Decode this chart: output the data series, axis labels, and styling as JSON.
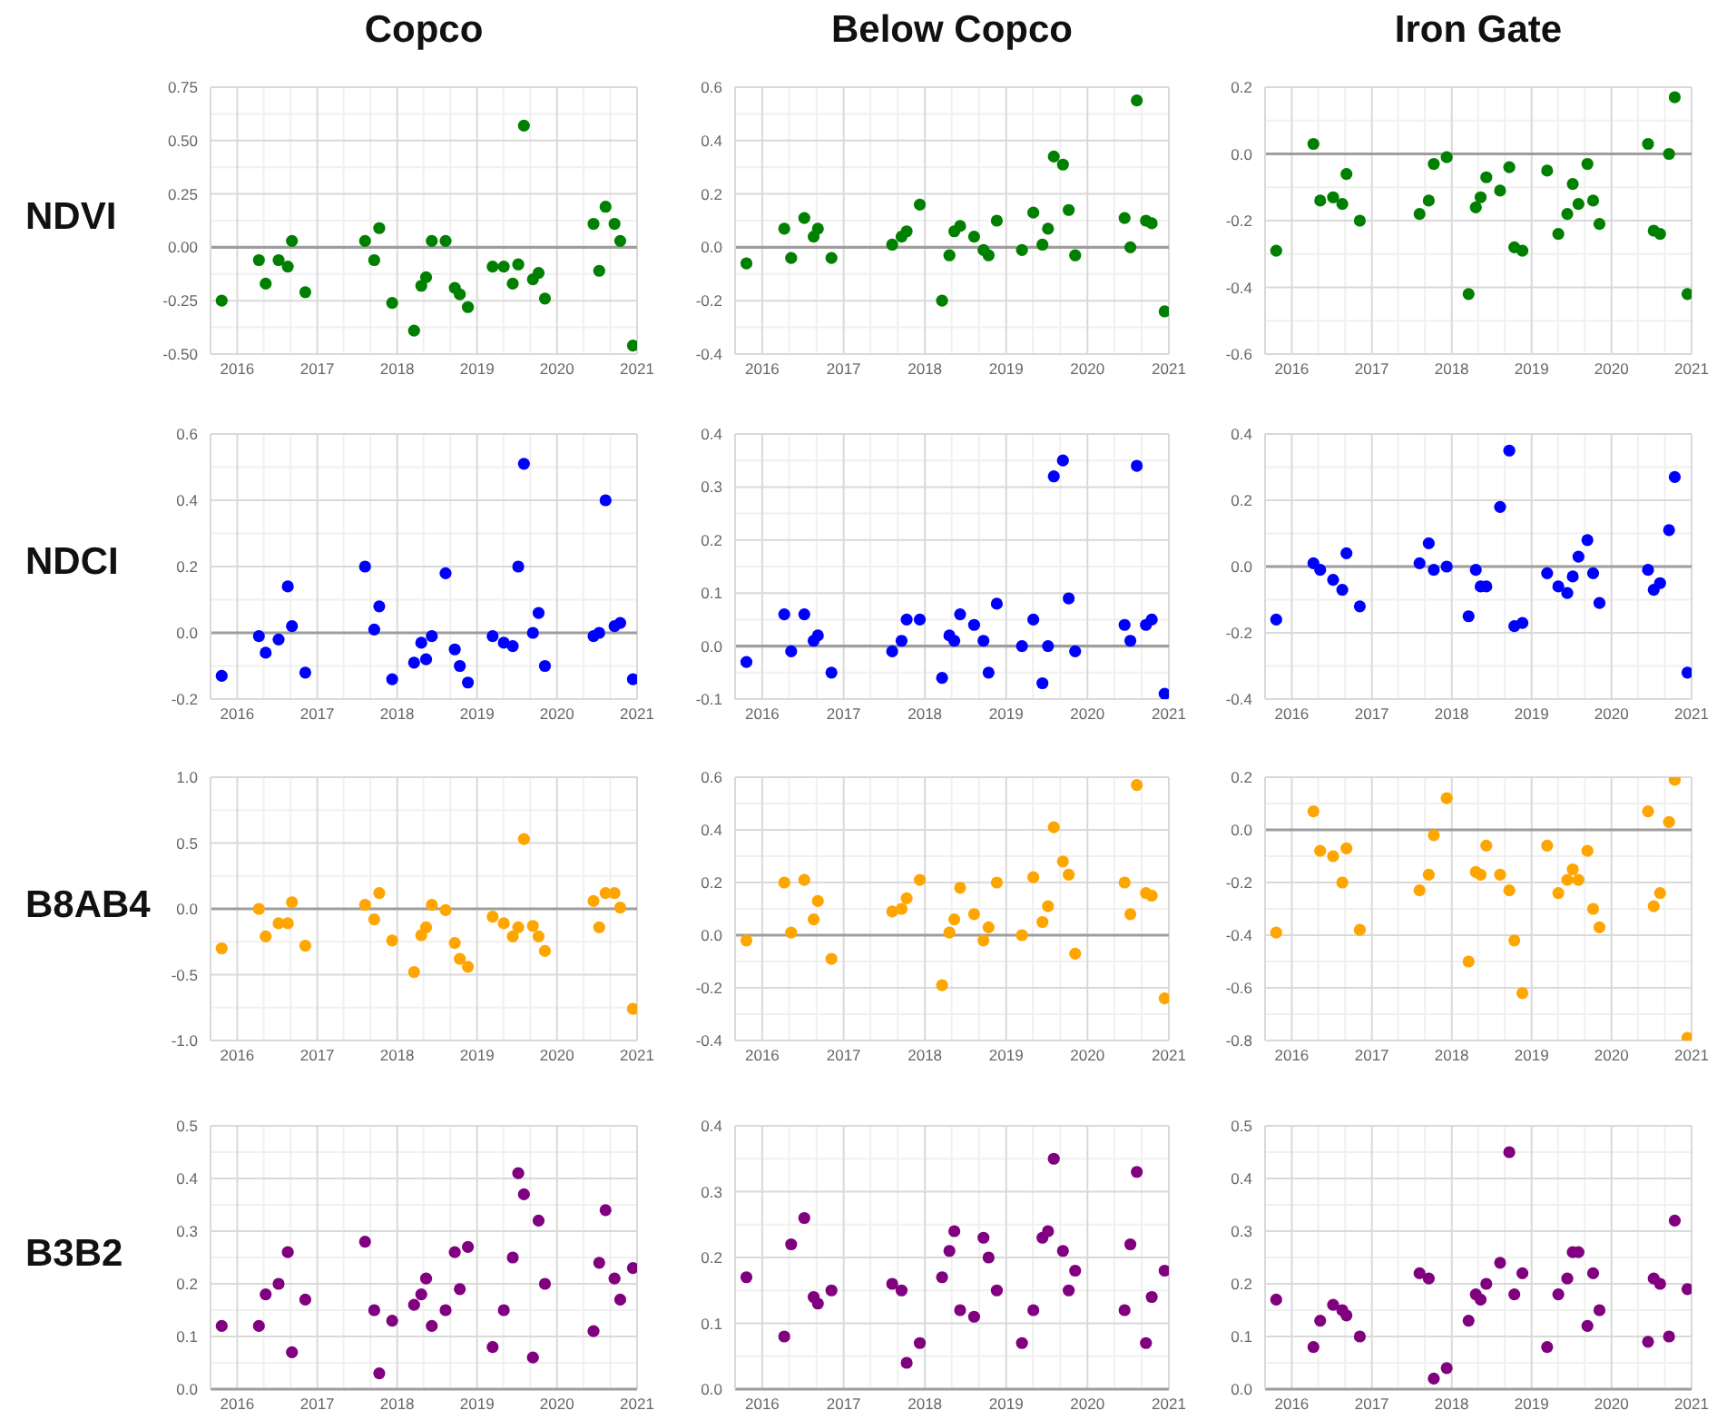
{
  "chart_data": [
    {
      "type": "scatter",
      "title": "Copco",
      "ylabel": "NDVI",
      "x": [
        "2015-10-22",
        "2016-04-09",
        "2016-05-10",
        "2016-07-08",
        "2016-08-19",
        "2016-09-07",
        "2016-11-07",
        "2017-08-07",
        "2017-09-18",
        "2017-10-11",
        "2017-12-09",
        "2018-03-19",
        "2018-04-21",
        "2018-05-13",
        "2018-06-08",
        "2018-08-10",
        "2018-09-21",
        "2018-10-14",
        "2018-11-20",
        "2019-03-13",
        "2019-05-03",
        "2019-06-13",
        "2019-07-08",
        "2019-08-03",
        "2019-09-13",
        "2019-10-09",
        "2019-11-07",
        "2020-06-16",
        "2020-07-12",
        "2020-08-10",
        "2020-09-20",
        "2020-10-16",
        "2020-12-13"
      ],
      "values": [
        -0.25,
        -0.06,
        -0.17,
        -0.06,
        -0.09,
        0.03,
        -0.21,
        0.03,
        -0.06,
        0.09,
        -0.26,
        -0.39,
        -0.18,
        -0.14,
        0.03,
        0.03,
        -0.19,
        -0.22,
        -0.28,
        -0.09,
        -0.09,
        -0.17,
        -0.08,
        0.57,
        -0.15,
        -0.12,
        -0.24,
        0.11,
        -0.11,
        0.19,
        0.11,
        0.03,
        -0.46
      ],
      "color": "#008000",
      "marker": "circle",
      "xlim": [
        "2015-09",
        "2021-01"
      ],
      "xticks": [
        "2016",
        {
          "value": "2016-05",
          "label": null
        },
        {
          "value": "2016-09",
          "label": null
        },
        "2017",
        {
          "value": "2017-05",
          "label": null
        },
        {
          "value": "2017-09",
          "label": null
        },
        "2018",
        {
          "value": "2018-05",
          "label": null
        },
        {
          "value": "2018-09",
          "label": null
        },
        "2019",
        {
          "value": "2019-05",
          "label": null
        },
        {
          "value": "2019-09",
          "label": null
        },
        "2020",
        {
          "value": "2020-05",
          "label": null
        },
        {
          "value": "2020-09",
          "label": null
        },
        "2021"
      ],
      "ylim": [
        -0.5,
        0.75
      ],
      "yticks": [
        {
          "value": -0.5,
          "label": "-0.50"
        },
        {
          "value": -0.375,
          "label": null
        },
        -0.25,
        {
          "value": -0.125,
          "label": null
        },
        {
          "value": 0,
          "label": "0.00"
        },
        {
          "value": 0.125,
          "label": null
        },
        0.25,
        {
          "value": 0.375,
          "label": null
        },
        {
          "value": 0.5,
          "label": "0.50"
        },
        {
          "value": 0.625,
          "label": null
        },
        0.75
      ],
      "grid": true,
      "ref_lines": [
        {
          "axis": "y",
          "value": 0,
          "color": "#9e9e9e"
        }
      ]
    },
    {
      "type": "scatter",
      "title": "Below Copco",
      "x": [
        "2015-10-22",
        "2016-04-09",
        "2016-05-10",
        "2016-07-08",
        "2016-08-19",
        "2016-09-07",
        "2016-11-07",
        "2017-08-07",
        "2017-09-18",
        "2017-10-11",
        "2017-12-09",
        "2018-03-19",
        "2018-04-21",
        "2018-05-13",
        "2018-06-08",
        "2018-08-10",
        "2018-09-21",
        "2018-10-14",
        "2018-11-20",
        "2019-03-13",
        "2019-05-03",
        "2019-06-13",
        "2019-07-08",
        "2019-08-03",
        "2019-09-13",
        "2019-10-09",
        "2019-11-07",
        "2020-06-16",
        "2020-07-12",
        "2020-08-10",
        "2020-09-20",
        "2020-10-16",
        "2020-12-13"
      ],
      "values": [
        -0.06,
        0.07,
        -0.04,
        0.11,
        0.04,
        0.07,
        -0.04,
        0.01,
        0.04,
        0.06,
        0.16,
        -0.2,
        -0.03,
        0.06,
        0.08,
        0.04,
        -0.01,
        -0.03,
        0.1,
        -0.01,
        0.13,
        0.01,
        0.07,
        0.34,
        0.31,
        0.14,
        -0.03,
        0.11,
        0.0,
        0.55,
        0.1,
        0.09,
        -0.24
      ],
      "color": "#008000",
      "marker": "circle",
      "xlim": [
        "2015-09",
        "2021-01"
      ],
      "xticks": [
        "2016",
        {
          "value": "2016-05",
          "label": null
        },
        {
          "value": "2016-09",
          "label": null
        },
        "2017",
        {
          "value": "2017-05",
          "label": null
        },
        {
          "value": "2017-09",
          "label": null
        },
        "2018",
        {
          "value": "2018-05",
          "label": null
        },
        {
          "value": "2018-09",
          "label": null
        },
        "2019",
        {
          "value": "2019-05",
          "label": null
        },
        {
          "value": "2019-09",
          "label": null
        },
        "2020",
        {
          "value": "2020-05",
          "label": null
        },
        {
          "value": "2020-09",
          "label": null
        },
        "2021"
      ],
      "ylim": [
        -0.4,
        0.6
      ],
      "yticks": [
        -0.4,
        {
          "value": -0.3,
          "label": null
        },
        -0.2,
        {
          "value": -0.1,
          "label": null
        },
        {
          "value": 0,
          "label": "0.0"
        },
        {
          "value": 0.1,
          "label": null
        },
        0.2,
        {
          "value": 0.3,
          "label": null
        },
        0.4,
        {
          "value": 0.5,
          "label": null
        },
        0.6
      ],
      "grid": true,
      "ref_lines": [
        {
          "axis": "y",
          "value": 0,
          "color": "#9e9e9e"
        }
      ]
    },
    {
      "type": "scatter",
      "title": "Iron Gate",
      "x": [
        "2015-10-22",
        "2016-04-09",
        "2016-05-10",
        "2016-07-08",
        "2016-08-19",
        "2016-09-07",
        "2016-11-07",
        "2017-08-07",
        "2017-09-18",
        "2017-10-11",
        "2017-12-09",
        "2018-03-19",
        "2018-04-21",
        "2018-05-13",
        "2018-06-08",
        "2018-08-10",
        "2018-09-21",
        "2018-10-14",
        "2018-11-20",
        "2019-03-13",
        "2019-05-03",
        "2019-06-13",
        "2019-07-08",
        "2019-08-03",
        "2019-09-13",
        "2019-10-09",
        "2019-11-07",
        "2020-06-16",
        "2020-07-12",
        "2020-08-10",
        "2020-09-20",
        "2020-10-16",
        "2020-12-13"
      ],
      "values": [
        -0.29,
        0.03,
        -0.14,
        -0.13,
        -0.15,
        -0.06,
        -0.2,
        -0.18,
        -0.14,
        -0.03,
        -0.01,
        -0.42,
        -0.16,
        -0.13,
        -0.07,
        -0.11,
        -0.04,
        -0.28,
        -0.29,
        -0.05,
        -0.24,
        -0.18,
        -0.09,
        -0.15,
        -0.03,
        -0.14,
        -0.21,
        0.03,
        -0.23,
        -0.24,
        0.0,
        0.17,
        -0.42
      ],
      "color": "#008000",
      "marker": "circle",
      "xlim": [
        "2015-09",
        "2021-01"
      ],
      "xticks": [
        "2016",
        {
          "value": "2016-05",
          "label": null
        },
        {
          "value": "2016-09",
          "label": null
        },
        "2017",
        {
          "value": "2017-05",
          "label": null
        },
        {
          "value": "2017-09",
          "label": null
        },
        "2018",
        {
          "value": "2018-05",
          "label": null
        },
        {
          "value": "2018-09",
          "label": null
        },
        "2019",
        {
          "value": "2019-05",
          "label": null
        },
        {
          "value": "2019-09",
          "label": null
        },
        "2020",
        {
          "value": "2020-05",
          "label": null
        },
        {
          "value": "2020-09",
          "label": null
        },
        "2021"
      ],
      "ylim": [
        -0.6,
        0.2
      ],
      "yticks": [
        -0.6,
        {
          "value": -0.5,
          "label": null
        },
        -0.4,
        {
          "value": -0.3,
          "label": null
        },
        -0.2,
        {
          "value": -0.1,
          "label": null
        },
        {
          "value": 0,
          "label": "0.0"
        },
        {
          "value": 0.1,
          "label": null
        },
        0.2
      ],
      "grid": true,
      "ref_lines": [
        {
          "axis": "y",
          "value": 0,
          "color": "#9e9e9e"
        }
      ]
    },
    {
      "type": "scatter",
      "ylabel": "NDCI",
      "x": [
        "2015-10-22",
        "2016-04-09",
        "2016-05-10",
        "2016-07-08",
        "2016-08-19",
        "2016-09-07",
        "2016-11-07",
        "2017-08-07",
        "2017-09-18",
        "2017-10-11",
        "2017-12-09",
        "2018-03-19",
        "2018-04-21",
        "2018-05-13",
        "2018-06-08",
        "2018-08-10",
        "2018-09-21",
        "2018-10-14",
        "2018-11-20",
        "2019-03-13",
        "2019-05-03",
        "2019-06-13",
        "2019-07-08",
        "2019-08-03",
        "2019-09-13",
        "2019-10-09",
        "2019-11-07",
        "2020-06-16",
        "2020-07-12",
        "2020-08-10",
        "2020-09-20",
        "2020-10-16",
        "2020-12-13"
      ],
      "values": [
        -0.13,
        -0.01,
        -0.06,
        -0.02,
        0.14,
        0.02,
        -0.12,
        0.2,
        0.01,
        0.08,
        -0.14,
        -0.09,
        -0.03,
        -0.08,
        -0.01,
        0.18,
        -0.05,
        -0.1,
        -0.15,
        -0.01,
        -0.03,
        -0.04,
        0.2,
        0.51,
        0.0,
        0.06,
        -0.1,
        -0.01,
        0.0,
        0.4,
        0.02,
        0.03,
        -0.14
      ],
      "color": "#0000ff",
      "marker": "circle",
      "xlim": [
        "2015-09",
        "2021-01"
      ],
      "xticks": [
        "2016",
        {
          "value": "2016-05",
          "label": null
        },
        {
          "value": "2016-09",
          "label": null
        },
        "2017",
        {
          "value": "2017-05",
          "label": null
        },
        {
          "value": "2017-09",
          "label": null
        },
        "2018",
        {
          "value": "2018-05",
          "label": null
        },
        {
          "value": "2018-09",
          "label": null
        },
        "2019",
        {
          "value": "2019-05",
          "label": null
        },
        {
          "value": "2019-09",
          "label": null
        },
        "2020",
        {
          "value": "2020-05",
          "label": null
        },
        {
          "value": "2020-09",
          "label": null
        },
        "2021"
      ],
      "ylim": [
        -0.2,
        0.6
      ],
      "yticks": [
        -0.2,
        {
          "value": -0.1,
          "label": null
        },
        {
          "value": 0,
          "label": "0.0"
        },
        {
          "value": 0.1,
          "label": null
        },
        0.2,
        {
          "value": 0.3,
          "label": null
        },
        0.4,
        {
          "value": 0.5,
          "label": null
        },
        0.6
      ],
      "grid": true,
      "ref_lines": [
        {
          "axis": "y",
          "value": 0,
          "color": "#9e9e9e"
        }
      ]
    },
    {
      "type": "scatter",
      "x": [
        "2015-10-22",
        "2016-04-09",
        "2016-05-10",
        "2016-07-08",
        "2016-08-19",
        "2016-09-07",
        "2016-11-07",
        "2017-08-07",
        "2017-09-18",
        "2017-10-11",
        "2017-12-09",
        "2018-03-19",
        "2018-04-21",
        "2018-05-13",
        "2018-06-08",
        "2018-08-10",
        "2018-09-21",
        "2018-10-14",
        "2018-11-20",
        "2019-03-13",
        "2019-05-03",
        "2019-06-13",
        "2019-07-08",
        "2019-08-03",
        "2019-09-13",
        "2019-10-09",
        "2019-11-07",
        "2020-06-16",
        "2020-07-12",
        "2020-08-10",
        "2020-09-20",
        "2020-10-16",
        "2020-12-13"
      ],
      "values": [
        -0.03,
        0.06,
        -0.01,
        0.06,
        0.01,
        0.02,
        -0.05,
        -0.01,
        0.01,
        0.05,
        0.05,
        -0.06,
        0.02,
        0.01,
        0.06,
        0.04,
        0.01,
        -0.05,
        0.08,
        0.0,
        0.05,
        -0.07,
        0.0,
        0.32,
        0.35,
        0.09,
        -0.01,
        0.04,
        0.01,
        0.34,
        0.04,
        0.05,
        -0.09
      ],
      "color": "#0000ff",
      "marker": "circle",
      "xlim": [
        "2015-09",
        "2021-01"
      ],
      "xticks": [
        "2016",
        {
          "value": "2016-05",
          "label": null
        },
        {
          "value": "2016-09",
          "label": null
        },
        "2017",
        {
          "value": "2017-05",
          "label": null
        },
        {
          "value": "2017-09",
          "label": null
        },
        "2018",
        {
          "value": "2018-05",
          "label": null
        },
        {
          "value": "2018-09",
          "label": null
        },
        "2019",
        {
          "value": "2019-05",
          "label": null
        },
        {
          "value": "2019-09",
          "label": null
        },
        "2020",
        {
          "value": "2020-05",
          "label": null
        },
        {
          "value": "2020-09",
          "label": null
        },
        "2021"
      ],
      "ylim": [
        -0.1,
        0.4
      ],
      "yticks": [
        -0.1,
        {
          "value": -0.05,
          "label": null
        },
        {
          "value": 0,
          "label": "0.0"
        },
        {
          "value": 0.05,
          "label": null
        },
        0.1,
        {
          "value": 0.15,
          "label": null
        },
        0.2,
        {
          "value": 0.25,
          "label": null
        },
        0.3,
        {
          "value": 0.35,
          "label": null
        },
        0.4
      ],
      "grid": true,
      "ref_lines": [
        {
          "axis": "y",
          "value": 0,
          "color": "#9e9e9e"
        }
      ]
    },
    {
      "type": "scatter",
      "x": [
        "2015-10-22",
        "2016-04-09",
        "2016-05-10",
        "2016-07-08",
        "2016-08-19",
        "2016-09-07",
        "2016-11-07",
        "2017-08-07",
        "2017-09-18",
        "2017-10-11",
        "2017-12-09",
        "2018-03-19",
        "2018-04-21",
        "2018-05-13",
        "2018-06-08",
        "2018-08-10",
        "2018-09-21",
        "2018-10-14",
        "2018-11-20",
        "2019-03-13",
        "2019-05-03",
        "2019-06-13",
        "2019-07-08",
        "2019-08-03",
        "2019-09-13",
        "2019-10-09",
        "2019-11-07",
        "2020-06-16",
        "2020-07-12",
        "2020-08-10",
        "2020-09-20",
        "2020-10-16",
        "2020-12-13"
      ],
      "values": [
        -0.16,
        0.01,
        -0.01,
        -0.04,
        -0.07,
        0.04,
        -0.12,
        0.01,
        0.07,
        -0.01,
        0.0,
        -0.15,
        -0.01,
        -0.06,
        -0.06,
        0.18,
        0.35,
        -0.18,
        -0.17,
        -0.02,
        -0.06,
        -0.08,
        -0.03,
        0.03,
        0.08,
        -0.02,
        -0.11,
        -0.01,
        -0.07,
        -0.05,
        0.11,
        0.27,
        -0.32
      ],
      "color": "#0000ff",
      "marker": "circle",
      "xlim": [
        "2015-09",
        "2021-01"
      ],
      "xticks": [
        "2016",
        {
          "value": "2016-05",
          "label": null
        },
        {
          "value": "2016-09",
          "label": null
        },
        "2017",
        {
          "value": "2017-05",
          "label": null
        },
        {
          "value": "2017-09",
          "label": null
        },
        "2018",
        {
          "value": "2018-05",
          "label": null
        },
        {
          "value": "2018-09",
          "label": null
        },
        "2019",
        {
          "value": "2019-05",
          "label": null
        },
        {
          "value": "2019-09",
          "label": null
        },
        "2020",
        {
          "value": "2020-05",
          "label": null
        },
        {
          "value": "2020-09",
          "label": null
        },
        "2021"
      ],
      "ylim": [
        -0.4,
        0.4
      ],
      "yticks": [
        -0.4,
        {
          "value": -0.3,
          "label": null
        },
        -0.2,
        {
          "value": -0.1,
          "label": null
        },
        {
          "value": 0,
          "label": "0.0"
        },
        {
          "value": 0.1,
          "label": null
        },
        0.2,
        {
          "value": 0.3,
          "label": null
        },
        0.4
      ],
      "grid": true,
      "ref_lines": [
        {
          "axis": "y",
          "value": 0,
          "color": "#9e9e9e"
        }
      ]
    },
    {
      "type": "scatter",
      "ylabel": "B8AB4",
      "x": [
        "2015-10-22",
        "2016-04-09",
        "2016-05-10",
        "2016-07-08",
        "2016-08-19",
        "2016-09-07",
        "2016-11-07",
        "2017-08-07",
        "2017-09-18",
        "2017-10-11",
        "2017-12-09",
        "2018-03-19",
        "2018-04-21",
        "2018-05-13",
        "2018-06-08",
        "2018-08-10",
        "2018-09-21",
        "2018-10-14",
        "2018-11-20",
        "2019-03-13",
        "2019-05-03",
        "2019-06-13",
        "2019-07-08",
        "2019-08-03",
        "2019-09-13",
        "2019-10-09",
        "2019-11-07",
        "2020-06-16",
        "2020-07-12",
        "2020-08-10",
        "2020-09-20",
        "2020-10-16",
        "2020-12-13"
      ],
      "values": [
        -0.3,
        0.0,
        -0.21,
        -0.11,
        -0.11,
        0.05,
        -0.28,
        0.03,
        -0.08,
        0.12,
        -0.24,
        -0.48,
        -0.2,
        -0.14,
        0.03,
        -0.01,
        -0.26,
        -0.38,
        -0.44,
        -0.06,
        -0.11,
        -0.21,
        -0.14,
        0.53,
        -0.13,
        -0.21,
        -0.32,
        0.06,
        -0.14,
        0.12,
        0.12,
        0.01,
        -0.76
      ],
      "color": "#ffa500",
      "marker": "circle",
      "xlim": [
        "2015-09",
        "2021-01"
      ],
      "xticks": [
        "2016",
        {
          "value": "2016-05",
          "label": null
        },
        {
          "value": "2016-09",
          "label": null
        },
        "2017",
        {
          "value": "2017-05",
          "label": null
        },
        {
          "value": "2017-09",
          "label": null
        },
        "2018",
        {
          "value": "2018-05",
          "label": null
        },
        {
          "value": "2018-09",
          "label": null
        },
        "2019",
        {
          "value": "2019-05",
          "label": null
        },
        {
          "value": "2019-09",
          "label": null
        },
        "2020",
        {
          "value": "2020-05",
          "label": null
        },
        {
          "value": "2020-09",
          "label": null
        },
        "2021"
      ],
      "ylim": [
        -1,
        1
      ],
      "yticks": [
        {
          "value": -1,
          "label": "-1.0"
        },
        {
          "value": -0.75,
          "label": null
        },
        -0.5,
        {
          "value": -0.25,
          "label": null
        },
        {
          "value": 0,
          "label": "0.0"
        },
        {
          "value": 0.25,
          "label": null
        },
        0.5,
        {
          "value": 0.75,
          "label": null
        },
        {
          "value": 1,
          "label": "1.0"
        }
      ],
      "grid": true,
      "ref_lines": [
        {
          "axis": "y",
          "value": 0,
          "color": "#9e9e9e"
        }
      ]
    },
    {
      "type": "scatter",
      "x": [
        "2015-10-22",
        "2016-04-09",
        "2016-05-10",
        "2016-07-08",
        "2016-08-19",
        "2016-09-07",
        "2016-11-07",
        "2017-08-07",
        "2017-09-18",
        "2017-10-11",
        "2017-12-09",
        "2018-03-19",
        "2018-04-21",
        "2018-05-13",
        "2018-06-08",
        "2018-08-10",
        "2018-09-21",
        "2018-10-14",
        "2018-11-20",
        "2019-03-13",
        "2019-05-03",
        "2019-06-13",
        "2019-07-08",
        "2019-08-03",
        "2019-09-13",
        "2019-10-09",
        "2019-11-07",
        "2020-06-16",
        "2020-07-12",
        "2020-08-10",
        "2020-09-20",
        "2020-10-16",
        "2020-12-13"
      ],
      "values": [
        -0.02,
        0.2,
        0.01,
        0.21,
        0.06,
        0.13,
        -0.09,
        0.09,
        0.1,
        0.14,
        0.21,
        -0.19,
        0.01,
        0.06,
        0.18,
        0.08,
        -0.02,
        0.03,
        0.2,
        0.0,
        0.22,
        0.05,
        0.11,
        0.41,
        0.28,
        0.23,
        -0.07,
        0.2,
        0.08,
        0.57,
        0.16,
        0.15,
        -0.24
      ],
      "color": "#ffa500",
      "marker": "circle",
      "xlim": [
        "2015-09",
        "2021-01"
      ],
      "xticks": [
        "2016",
        {
          "value": "2016-05",
          "label": null
        },
        {
          "value": "2016-09",
          "label": null
        },
        "2017",
        {
          "value": "2017-05",
          "label": null
        },
        {
          "value": "2017-09",
          "label": null
        },
        "2018",
        {
          "value": "2018-05",
          "label": null
        },
        {
          "value": "2018-09",
          "label": null
        },
        "2019",
        {
          "value": "2019-05",
          "label": null
        },
        {
          "value": "2019-09",
          "label": null
        },
        "2020",
        {
          "value": "2020-05",
          "label": null
        },
        {
          "value": "2020-09",
          "label": null
        },
        "2021"
      ],
      "ylim": [
        -0.4,
        0.6
      ],
      "yticks": [
        -0.4,
        {
          "value": -0.3,
          "label": null
        },
        -0.2,
        {
          "value": -0.1,
          "label": null
        },
        {
          "value": 0,
          "label": "0.0"
        },
        {
          "value": 0.1,
          "label": null
        },
        0.2,
        {
          "value": 0.3,
          "label": null
        },
        0.4,
        {
          "value": 0.5,
          "label": null
        },
        0.6
      ],
      "grid": true,
      "ref_lines": [
        {
          "axis": "y",
          "value": 0,
          "color": "#9e9e9e"
        }
      ]
    },
    {
      "type": "scatter",
      "x": [
        "2015-10-22",
        "2016-04-09",
        "2016-05-10",
        "2016-07-08",
        "2016-08-19",
        "2016-09-07",
        "2016-11-07",
        "2017-08-07",
        "2017-09-18",
        "2017-10-11",
        "2017-12-09",
        "2018-03-19",
        "2018-04-21",
        "2018-05-13",
        "2018-06-08",
        "2018-08-10",
        "2018-09-21",
        "2018-10-14",
        "2018-11-20",
        "2019-03-13",
        "2019-05-03",
        "2019-06-13",
        "2019-07-08",
        "2019-08-03",
        "2019-09-13",
        "2019-10-09",
        "2019-11-07",
        "2020-06-16",
        "2020-07-12",
        "2020-08-10",
        "2020-09-20",
        "2020-10-16",
        "2020-12-13"
      ],
      "values": [
        -0.39,
        0.07,
        -0.08,
        -0.1,
        -0.2,
        -0.07,
        -0.38,
        -0.23,
        -0.17,
        -0.02,
        0.12,
        -0.5,
        -0.16,
        -0.17,
        -0.06,
        -0.17,
        -0.23,
        -0.42,
        -0.62,
        -0.06,
        -0.24,
        -0.19,
        -0.15,
        -0.19,
        -0.08,
        -0.3,
        -0.37,
        0.07,
        -0.29,
        -0.24,
        0.03,
        0.19,
        -0.79
      ],
      "color": "#ffa500",
      "marker": "circle",
      "xlim": [
        "2015-09",
        "2021-01"
      ],
      "xticks": [
        "2016",
        {
          "value": "2016-05",
          "label": null
        },
        {
          "value": "2016-09",
          "label": null
        },
        "2017",
        {
          "value": "2017-05",
          "label": null
        },
        {
          "value": "2017-09",
          "label": null
        },
        "2018",
        {
          "value": "2018-05",
          "label": null
        },
        {
          "value": "2018-09",
          "label": null
        },
        "2019",
        {
          "value": "2019-05",
          "label": null
        },
        {
          "value": "2019-09",
          "label": null
        },
        "2020",
        {
          "value": "2020-05",
          "label": null
        },
        {
          "value": "2020-09",
          "label": null
        },
        "2021"
      ],
      "ylim": [
        -0.8,
        0.2
      ],
      "yticks": [
        -0.8,
        {
          "value": -0.7,
          "label": null
        },
        -0.6,
        {
          "value": -0.5,
          "label": null
        },
        -0.4,
        {
          "value": -0.3,
          "label": null
        },
        -0.2,
        {
          "value": -0.1,
          "label": null
        },
        {
          "value": 0,
          "label": "0.0"
        },
        {
          "value": 0.1,
          "label": null
        },
        0.2
      ],
      "grid": true,
      "ref_lines": [
        {
          "axis": "y",
          "value": 0,
          "color": "#9e9e9e"
        }
      ]
    },
    {
      "type": "scatter",
      "ylabel": "B3B2",
      "x": [
        "2015-10-22",
        "2016-04-09",
        "2016-05-10",
        "2016-07-08",
        "2016-08-19",
        "2016-09-07",
        "2016-11-07",
        "2017-08-07",
        "2017-09-18",
        "2017-10-11",
        "2017-12-09",
        "2018-03-19",
        "2018-04-21",
        "2018-05-13",
        "2018-06-08",
        "2018-08-10",
        "2018-09-21",
        "2018-10-14",
        "2018-11-20",
        "2019-03-13",
        "2019-05-03",
        "2019-06-13",
        "2019-07-08",
        "2019-08-03",
        "2019-09-13",
        "2019-10-09",
        "2019-11-07",
        "2020-06-16",
        "2020-07-12",
        "2020-08-10",
        "2020-09-20",
        "2020-10-16",
        "2020-12-13"
      ],
      "values": [
        0.12,
        0.12,
        0.18,
        0.2,
        0.26,
        0.07,
        0.17,
        0.28,
        0.15,
        0.03,
        0.13,
        0.16,
        0.18,
        0.21,
        0.12,
        0.15,
        0.26,
        0.19,
        0.27,
        0.08,
        0.15,
        0.25,
        0.41,
        0.37,
        0.06,
        0.32,
        0.2,
        0.11,
        0.24,
        0.34,
        0.21,
        0.17,
        0.23
      ],
      "color": "#800080",
      "marker": "circle",
      "xlim": [
        "2015-09",
        "2021-01"
      ],
      "xticks": [
        "2016",
        {
          "value": "2016-05",
          "label": null
        },
        {
          "value": "2016-09",
          "label": null
        },
        "2017",
        {
          "value": "2017-05",
          "label": null
        },
        {
          "value": "2017-09",
          "label": null
        },
        "2018",
        {
          "value": "2018-05",
          "label": null
        },
        {
          "value": "2018-09",
          "label": null
        },
        "2019",
        {
          "value": "2019-05",
          "label": null
        },
        {
          "value": "2019-09",
          "label": null
        },
        "2020",
        {
          "value": "2020-05",
          "label": null
        },
        {
          "value": "2020-09",
          "label": null
        },
        "2021"
      ],
      "ylim": [
        0,
        0.5
      ],
      "yticks": [
        {
          "value": 0,
          "label": "0.0"
        },
        {
          "value": 0.05,
          "label": null
        },
        0.1,
        {
          "value": 0.15,
          "label": null
        },
        0.2,
        {
          "value": 0.25,
          "label": null
        },
        0.3,
        {
          "value": 0.35,
          "label": null
        },
        0.4,
        {
          "value": 0.45,
          "label": null
        },
        0.5
      ],
      "grid": true
    },
    {
      "type": "scatter",
      "x": [
        "2015-10-22",
        "2016-04-09",
        "2016-05-10",
        "2016-07-08",
        "2016-08-19",
        "2016-09-07",
        "2016-11-07",
        "2017-08-07",
        "2017-09-18",
        "2017-10-11",
        "2017-12-09",
        "2018-03-19",
        "2018-04-21",
        "2018-05-13",
        "2018-06-08",
        "2018-08-10",
        "2018-09-21",
        "2018-10-14",
        "2018-11-20",
        "2019-03-13",
        "2019-05-03",
        "2019-06-13",
        "2019-07-08",
        "2019-08-03",
        "2019-09-13",
        "2019-10-09",
        "2019-11-07",
        "2020-06-16",
        "2020-07-12",
        "2020-08-10",
        "2020-09-20",
        "2020-10-16",
        "2020-12-13"
      ],
      "values": [
        0.17,
        0.08,
        0.22,
        0.26,
        0.14,
        0.13,
        0.15,
        0.16,
        0.15,
        0.04,
        0.07,
        0.17,
        0.21,
        0.24,
        0.12,
        0.11,
        0.23,
        0.2,
        0.15,
        0.07,
        0.12,
        0.23,
        0.24,
        0.35,
        0.21,
        0.15,
        0.18,
        0.12,
        0.22,
        0.33,
        0.07,
        0.14,
        0.18
      ],
      "color": "#800080",
      "marker": "circle",
      "xlim": [
        "2015-09",
        "2021-01"
      ],
      "xticks": [
        "2016",
        {
          "value": "2016-05",
          "label": null
        },
        {
          "value": "2016-09",
          "label": null
        },
        "2017",
        {
          "value": "2017-05",
          "label": null
        },
        {
          "value": "2017-09",
          "label": null
        },
        "2018",
        {
          "value": "2018-05",
          "label": null
        },
        {
          "value": "2018-09",
          "label": null
        },
        "2019",
        {
          "value": "2019-05",
          "label": null
        },
        {
          "value": "2019-09",
          "label": null
        },
        "2020",
        {
          "value": "2020-05",
          "label": null
        },
        {
          "value": "2020-09",
          "label": null
        },
        "2021"
      ],
      "ylim": [
        0,
        0.4
      ],
      "yticks": [
        {
          "value": 0,
          "label": "0.0"
        },
        {
          "value": 0.05,
          "label": null
        },
        0.1,
        {
          "value": 0.15,
          "label": null
        },
        0.2,
        {
          "value": 0.25,
          "label": null
        },
        0.3,
        {
          "value": 0.35,
          "label": null
        },
        0.4
      ],
      "grid": true
    },
    {
      "type": "scatter",
      "x": [
        "2015-10-22",
        "2016-04-09",
        "2016-05-10",
        "2016-07-08",
        "2016-08-19",
        "2016-09-07",
        "2016-11-07",
        "2017-08-07",
        "2017-09-18",
        "2017-10-11",
        "2017-12-09",
        "2018-03-19",
        "2018-04-21",
        "2018-05-13",
        "2018-06-08",
        "2018-08-10",
        "2018-09-21",
        "2018-10-14",
        "2018-11-20",
        "2019-03-13",
        "2019-05-03",
        "2019-06-13",
        "2019-07-08",
        "2019-08-03",
        "2019-09-13",
        "2019-10-09",
        "2019-11-07",
        "2020-06-16",
        "2020-07-12",
        "2020-08-10",
        "2020-09-20",
        "2020-10-16",
        "2020-12-13"
      ],
      "values": [
        0.17,
        0.08,
        0.13,
        0.16,
        0.15,
        0.14,
        0.1,
        0.22,
        0.21,
        0.02,
        0.04,
        0.13,
        0.18,
        0.17,
        0.2,
        0.24,
        0.45,
        0.18,
        0.22,
        0.08,
        0.18,
        0.21,
        0.26,
        0.26,
        0.12,
        0.22,
        0.15,
        0.09,
        0.21,
        0.2,
        0.1,
        0.32,
        0.19
      ],
      "color": "#800080",
      "marker": "circle",
      "xlim": [
        "2015-09",
        "2021-01"
      ],
      "xticks": [
        "2016",
        {
          "value": "2016-05",
          "label": null
        },
        {
          "value": "2016-09",
          "label": null
        },
        "2017",
        {
          "value": "2017-05",
          "label": null
        },
        {
          "value": "2017-09",
          "label": null
        },
        "2018",
        {
          "value": "2018-05",
          "label": null
        },
        {
          "value": "2018-09",
          "label": null
        },
        "2019",
        {
          "value": "2019-05",
          "label": null
        },
        {
          "value": "2019-09",
          "label": null
        },
        "2020",
        {
          "value": "2020-05",
          "label": null
        },
        {
          "value": "2020-09",
          "label": null
        },
        "2021"
      ],
      "ylim": [
        0,
        0.5
      ],
      "yticks": [
        {
          "value": 0,
          "label": "0.0"
        },
        {
          "value": 0.05,
          "label": null
        },
        0.1,
        {
          "value": 0.15,
          "label": null
        },
        0.2,
        {
          "value": 0.25,
          "label": null
        },
        0.3,
        {
          "value": 0.35,
          "label": null
        },
        0.4,
        {
          "value": 0.45,
          "label": null
        },
        0.5
      ],
      "grid": true
    }
  ]
}
